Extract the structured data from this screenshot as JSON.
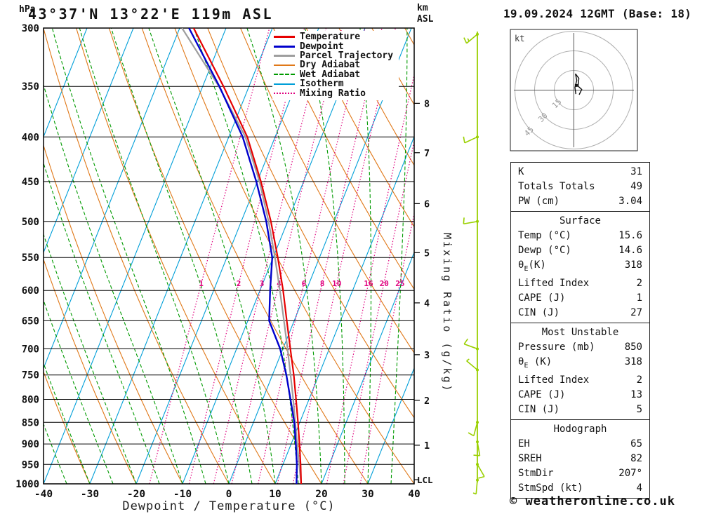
{
  "header": {
    "plot_title": "43°37'N 13°22'E 119m ASL",
    "datetime": "19.09.2024 12GMT (Base: 18)",
    "pressure_unit": "hPa",
    "altitude_unit_line1": "km",
    "altitude_unit_line2": "ASL"
  },
  "axes": {
    "xlabel": "Dewpoint / Temperature (°C)",
    "mixing_ratio_axis_label": "Mixing Ratio (g/kg)",
    "lcl_label": "LCL"
  },
  "legend": [
    {
      "label": "Temperature",
      "color": "#e60000",
      "style": "solid",
      "width": 3
    },
    {
      "label": "Dewpoint",
      "color": "#0000cc",
      "style": "solid",
      "width": 3
    },
    {
      "label": "Parcel Trajectory",
      "color": "#9e9e9e",
      "style": "solid",
      "width": 3
    },
    {
      "label": "Dry Adiabat",
      "color": "#e07818",
      "style": "solid",
      "width": 2
    },
    {
      "label": "Wet Adiabat",
      "color": "#009a00",
      "style": "dashed",
      "width": 2
    },
    {
      "label": "Isotherm",
      "color": "#009fd8",
      "style": "solid",
      "width": 2
    },
    {
      "label": "Mixing Ratio",
      "color": "#e0007e",
      "style": "dotted",
      "width": 2
    }
  ],
  "colors": {
    "temperature": "#e60000",
    "dewpoint": "#0000cc",
    "parcel": "#9e9e9e",
    "dry_adiabat": "#e07818",
    "wet_adiabat": "#009a00",
    "isotherm": "#009fd8",
    "mixing_ratio": "#e0007e",
    "wind_barb": "#9ad000",
    "grid": "#000000"
  },
  "chart_data": [
    {
      "type": "skewt-log-p",
      "pressure_range_hPa": [
        300,
        1000
      ],
      "temp_range_C": [
        -40,
        40
      ],
      "pressure_ticks_hPa": [
        300,
        350,
        400,
        450,
        500,
        550,
        600,
        650,
        700,
        750,
        800,
        850,
        900,
        950,
        1000
      ],
      "temp_ticks_C": [
        -40,
        -30,
        -20,
        -10,
        0,
        10,
        20,
        30,
        40
      ],
      "isotherm_step_C": 10,
      "dry_adiabat_step_C": 10,
      "wet_adiabat_step_C": 5,
      "mixing_ratio_lines_g_kg": [
        1,
        2,
        3,
        4,
        6,
        8,
        10,
        16,
        20,
        25
      ],
      "km_asl_levels": [
        {
          "km": 1,
          "hPa": 903
        },
        {
          "km": 2,
          "hPa": 802
        },
        {
          "km": 3,
          "hPa": 711
        },
        {
          "km": 4,
          "hPa": 620
        },
        {
          "km": 5,
          "hPa": 543
        },
        {
          "km": 6,
          "hPa": 477
        },
        {
          "km": 7,
          "hPa": 417
        },
        {
          "km": 8,
          "hPa": 366
        }
      ],
      "lcl_hPa": 989,
      "sounding": {
        "pressure_hPa": [
          1000,
          950,
          900,
          850,
          800,
          750,
          700,
          650,
          600,
          550,
          500,
          450,
          400,
          350,
          300
        ],
        "temperature_C": [
          15.6,
          13.8,
          11.8,
          9.6,
          7.2,
          4.6,
          1.6,
          -1.6,
          -5.0,
          -9.0,
          -13.6,
          -19.2,
          -26.0,
          -35.5,
          -47.0
        ],
        "dewpoint_C": [
          14.6,
          13.0,
          11.0,
          8.8,
          6.0,
          3.0,
          -0.6,
          -5.4,
          -7.8,
          -10.2,
          -14.6,
          -20.2,
          -27.0,
          -36.4,
          -48.0
        ],
        "parcel_C": [
          15.6,
          13.5,
          11.3,
          9.0,
          6.6,
          3.9,
          1.0,
          -2.2,
          -5.7,
          -9.6,
          -14.1,
          -19.5,
          -26.4,
          -36.5,
          -49.5
        ]
      },
      "wind_barbs": [
        {
          "hPa": 305,
          "dir_deg": 230,
          "speed_kt": 15
        },
        {
          "hPa": 400,
          "dir_deg": 245,
          "speed_kt": 10
        },
        {
          "hPa": 500,
          "dir_deg": 260,
          "speed_kt": 10
        },
        {
          "hPa": 700,
          "dir_deg": 290,
          "speed_kt": 10
        },
        {
          "hPa": 740,
          "dir_deg": 310,
          "speed_kt": 5
        },
        {
          "hPa": 850,
          "dir_deg": 195,
          "speed_kt": 10
        },
        {
          "hPa": 895,
          "dir_deg": 170,
          "speed_kt": 10
        },
        {
          "hPa": 950,
          "dir_deg": 150,
          "speed_kt": 10
        },
        {
          "hPa": 990,
          "dir_deg": 185,
          "speed_kt": 5
        }
      ]
    },
    {
      "type": "hodograph",
      "unit_label": "kt",
      "ring_labels_kt": [
        15,
        30,
        45
      ],
      "trace_uv_kt": [
        [
          1.5,
          -3
        ],
        [
          0.8,
          2
        ],
        [
          2.2,
          7.5
        ],
        [
          1.2,
          12.5
        ],
        [
          3.8,
          9
        ],
        [
          3.2,
          3
        ],
        [
          6,
          0.5
        ],
        [
          4,
          -3.5
        ]
      ],
      "storm_motion": {
        "dir_deg": 207,
        "speed_kt": 4
      }
    }
  ],
  "stats": [
    {
      "title": "",
      "rows": [
        [
          "K",
          "31"
        ],
        [
          "Totals Totals",
          "49"
        ],
        [
          "PW (cm)",
          "3.04"
        ]
      ]
    },
    {
      "title": "Surface",
      "rows": [
        [
          "Temp (°C)",
          "15.6"
        ],
        [
          "Dewp (°C)",
          "14.6"
        ],
        [
          "θ<sub>E</sub>(K)",
          "318"
        ],
        [
          "Lifted Index",
          "2"
        ],
        [
          "CAPE (J)",
          "1"
        ],
        [
          "CIN (J)",
          "27"
        ]
      ]
    },
    {
      "title": "Most Unstable",
      "rows": [
        [
          "Pressure (mb)",
          "850"
        ],
        [
          "θ<sub>E</sub> (K)",
          "318"
        ],
        [
          "Lifted Index",
          "2"
        ],
        [
          "CAPE (J)",
          "13"
        ],
        [
          "CIN (J)",
          "5"
        ]
      ]
    },
    {
      "title": "Hodograph",
      "rows": [
        [
          "EH",
          "65"
        ],
        [
          "SREH",
          "82"
        ],
        [
          "StmDir",
          "207°"
        ],
        [
          "StmSpd (kt)",
          "4"
        ]
      ]
    }
  ],
  "copyright": "© weatheronline.co.uk"
}
